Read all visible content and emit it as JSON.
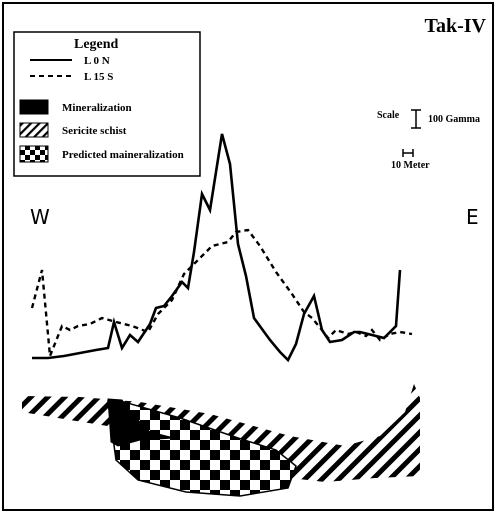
{
  "chart_data": {
    "type": "line",
    "title": "Tak-IV",
    "x_labels": {
      "west": "W",
      "east": "E"
    },
    "legend": {
      "heading": "Legend",
      "entries": [
        {
          "label": "L 0 N",
          "style": "solid"
        },
        {
          "label": "L 15 S",
          "style": "dashed"
        },
        {
          "label": "Mineralization",
          "style": "filled-black"
        },
        {
          "label": "Sericite schist",
          "style": "diagonal-hatch"
        },
        {
          "label": "Predicted maineralization",
          "style": "checkerboard"
        }
      ]
    },
    "scale": {
      "label": "Scale",
      "vertical_bar": "100 Gamma",
      "horizontal_bar": "10 Meter"
    },
    "series": [
      {
        "name": "L 0 N",
        "style": "solid",
        "points": [
          [
            0,
            12
          ],
          [
            16,
            12
          ],
          [
            32,
            14
          ],
          [
            48,
            17
          ],
          [
            64,
            20
          ],
          [
            76,
            22
          ],
          [
            82,
            48
          ],
          [
            90,
            22
          ],
          [
            98,
            35
          ],
          [
            106,
            28
          ],
          [
            118,
            46
          ],
          [
            124,
            62
          ],
          [
            132,
            64
          ],
          [
            140,
            74
          ],
          [
            150,
            88
          ],
          [
            156,
            82
          ],
          [
            162,
            118
          ],
          [
            170,
            176
          ],
          [
            178,
            160
          ],
          [
            190,
            236
          ],
          [
            198,
            206
          ],
          [
            206,
            126
          ],
          [
            214,
            94
          ],
          [
            222,
            52
          ],
          [
            238,
            30
          ],
          [
            248,
            18
          ],
          [
            256,
            10
          ],
          [
            264,
            26
          ],
          [
            272,
            56
          ],
          [
            282,
            74
          ],
          [
            290,
            40
          ],
          [
            298,
            28
          ],
          [
            310,
            30
          ],
          [
            322,
            38
          ],
          [
            328,
            38
          ],
          [
            336,
            36
          ],
          [
            344,
            34
          ],
          [
            352,
            32
          ],
          [
            364,
            44
          ],
          [
            368,
            100
          ]
        ]
      },
      {
        "name": "L 15 S",
        "style": "dashed",
        "points": [
          [
            0,
            62
          ],
          [
            10,
            100
          ],
          [
            18,
            14
          ],
          [
            30,
            44
          ],
          [
            38,
            40
          ],
          [
            46,
            44
          ],
          [
            58,
            46
          ],
          [
            70,
            52
          ],
          [
            84,
            48
          ],
          [
            100,
            44
          ],
          [
            116,
            38
          ],
          [
            126,
            56
          ],
          [
            140,
            70
          ],
          [
            152,
            96
          ],
          [
            166,
            110
          ],
          [
            180,
            124
          ],
          [
            196,
            128
          ],
          [
            204,
            138
          ],
          [
            216,
            140
          ],
          [
            228,
            124
          ],
          [
            244,
            98
          ],
          [
            260,
            76
          ],
          [
            272,
            58
          ],
          [
            280,
            52
          ],
          [
            290,
            40
          ],
          [
            296,
            32
          ],
          [
            304,
            40
          ],
          [
            316,
            36
          ],
          [
            324,
            38
          ],
          [
            334,
            34
          ],
          [
            340,
            40
          ],
          [
            348,
            30
          ],
          [
            358,
            36
          ],
          [
            368,
            38
          ],
          [
            380,
            36
          ]
        ]
      }
    ],
    "cross_section": [
      {
        "unit": "Sericite schist",
        "pattern": "diagonal-hatch"
      },
      {
        "unit": "Predicted maineralization",
        "pattern": "checkerboard"
      },
      {
        "unit": "Mineralization",
        "pattern": "filled-black"
      }
    ]
  }
}
